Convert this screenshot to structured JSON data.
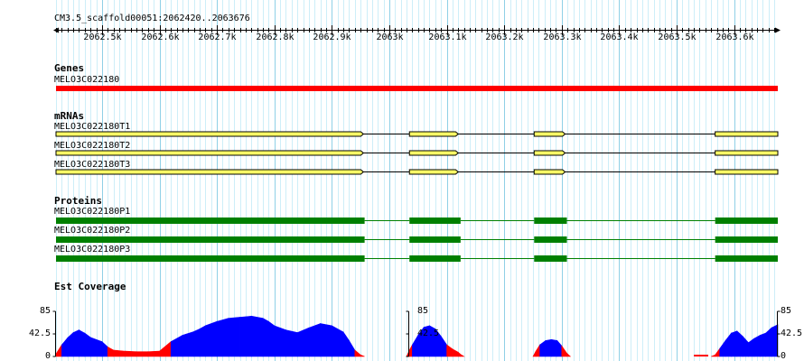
{
  "region": "CM3.5_scaffold00051:2062420..2063676",
  "ruler": {
    "start": 2062420,
    "end": 2063676,
    "major_ticks": [
      {
        "pos": 2062500,
        "label": "2062.5k"
      },
      {
        "pos": 2062600,
        "label": "2062.6k"
      },
      {
        "pos": 2062700,
        "label": "2062.7k"
      },
      {
        "pos": 2062800,
        "label": "2062.8k"
      },
      {
        "pos": 2062900,
        "label": "2062.9k"
      },
      {
        "pos": 2063000,
        "label": "2063k"
      },
      {
        "pos": 2063100,
        "label": "2063.1k"
      },
      {
        "pos": 2063200,
        "label": "2063.2k"
      },
      {
        "pos": 2063300,
        "label": "2063.3k"
      },
      {
        "pos": 2063400,
        "label": "2063.4k"
      },
      {
        "pos": 2063500,
        "label": "2063.5k"
      },
      {
        "pos": 2063600,
        "label": "2063.6k"
      }
    ],
    "minor_step": 10
  },
  "tracks": {
    "genes": {
      "title": "Genes",
      "color": "#ff0000",
      "features": [
        {
          "name": "MELO3C022180",
          "start": 2062420,
          "end": 2063676
        }
      ]
    },
    "mrnas": {
      "title": "mRNAs",
      "fill": "#ffff66",
      "outline": "#000000",
      "features": [
        {
          "name": "MELO3C022180T1",
          "exons": [
            [
              2062420,
              2062955
            ],
            [
              2063035,
              2063120
            ],
            [
              2063252,
              2063306
            ],
            [
              2063567,
              2063676
            ]
          ]
        },
        {
          "name": "MELO3C022180T2",
          "exons": [
            [
              2062420,
              2062955
            ],
            [
              2063035,
              2063120
            ],
            [
              2063252,
              2063306
            ],
            [
              2063567,
              2063676
            ]
          ]
        },
        {
          "name": "MELO3C022180T3",
          "exons": [
            [
              2062420,
              2062955
            ],
            [
              2063035,
              2063120
            ],
            [
              2063252,
              2063306
            ],
            [
              2063567,
              2063676
            ]
          ]
        }
      ]
    },
    "proteins": {
      "title": "Proteins",
      "color": "#008000",
      "features": [
        {
          "name": "MELO3C022180P1",
          "exons": [
            [
              2062420,
              2062957
            ],
            [
              2063035,
              2063124
            ],
            [
              2063252,
              2063309
            ],
            [
              2063567,
              2063676
            ]
          ]
        },
        {
          "name": "MELO3C022180P2",
          "exons": [
            [
              2062420,
              2062957
            ],
            [
              2063035,
              2063124
            ],
            [
              2063252,
              2063309
            ],
            [
              2063567,
              2063676
            ]
          ]
        },
        {
          "name": "MELO3C022180P3",
          "exons": [
            [
              2062420,
              2062957
            ],
            [
              2063035,
              2063124
            ],
            [
              2063252,
              2063309
            ],
            [
              2063567,
              2063676
            ]
          ]
        }
      ]
    },
    "est_coverage": {
      "title": "Est Coverage",
      "y_max_label": "85",
      "y_mid_label": "42.5",
      "y_min_label": "0",
      "y_max": 85,
      "high_color": "#0000ff",
      "low_color": "#ff0000"
    }
  },
  "chart_data": {
    "type": "area",
    "title": "Est Coverage",
    "ylim": [
      0,
      85
    ],
    "x": [
      2062420,
      2062430,
      2062440,
      2062450,
      2062460,
      2062470,
      2062480,
      2062500,
      2062510,
      2062520,
      2062540,
      2062560,
      2062580,
      2062600,
      2062620,
      2062640,
      2062660,
      2062670,
      2062680,
      2062700,
      2062720,
      2062740,
      2062760,
      2062780,
      2062790,
      2062800,
      2062820,
      2062840,
      2062860,
      2062880,
      2062900,
      2062920,
      2062930,
      2062940,
      2062950,
      2062957,
      2062960,
      2063030,
      2063035,
      2063040,
      2063050,
      2063060,
      2063070,
      2063080,
      2063090,
      2063100,
      2063110,
      2063120,
      2063124,
      2063130,
      2063250,
      2063255,
      2063262,
      2063272,
      2063282,
      2063292,
      2063300,
      2063309,
      2063315,
      2063560,
      2063567,
      2063575,
      2063585,
      2063595,
      2063605,
      2063615,
      2063625,
      2063635,
      2063645,
      2063655,
      2063665,
      2063676
    ],
    "series": [
      {
        "values": [
          5,
          22,
          35,
          45,
          50,
          44,
          36,
          28,
          18,
          12,
          10,
          9,
          9,
          10,
          28,
          40,
          47,
          52,
          58,
          66,
          72,
          74,
          76,
          72,
          66,
          58,
          50,
          45,
          54,
          62,
          58,
          46,
          30,
          12,
          3,
          0,
          0,
          0,
          12,
          22,
          40,
          55,
          58,
          52,
          38,
          22,
          14,
          8,
          4,
          0,
          0,
          10,
          22,
          30,
          32,
          30,
          20,
          6,
          0,
          0,
          3,
          15,
          30,
          44,
          48,
          38,
          26,
          34,
          40,
          44,
          54,
          60
        ]
      }
    ]
  }
}
